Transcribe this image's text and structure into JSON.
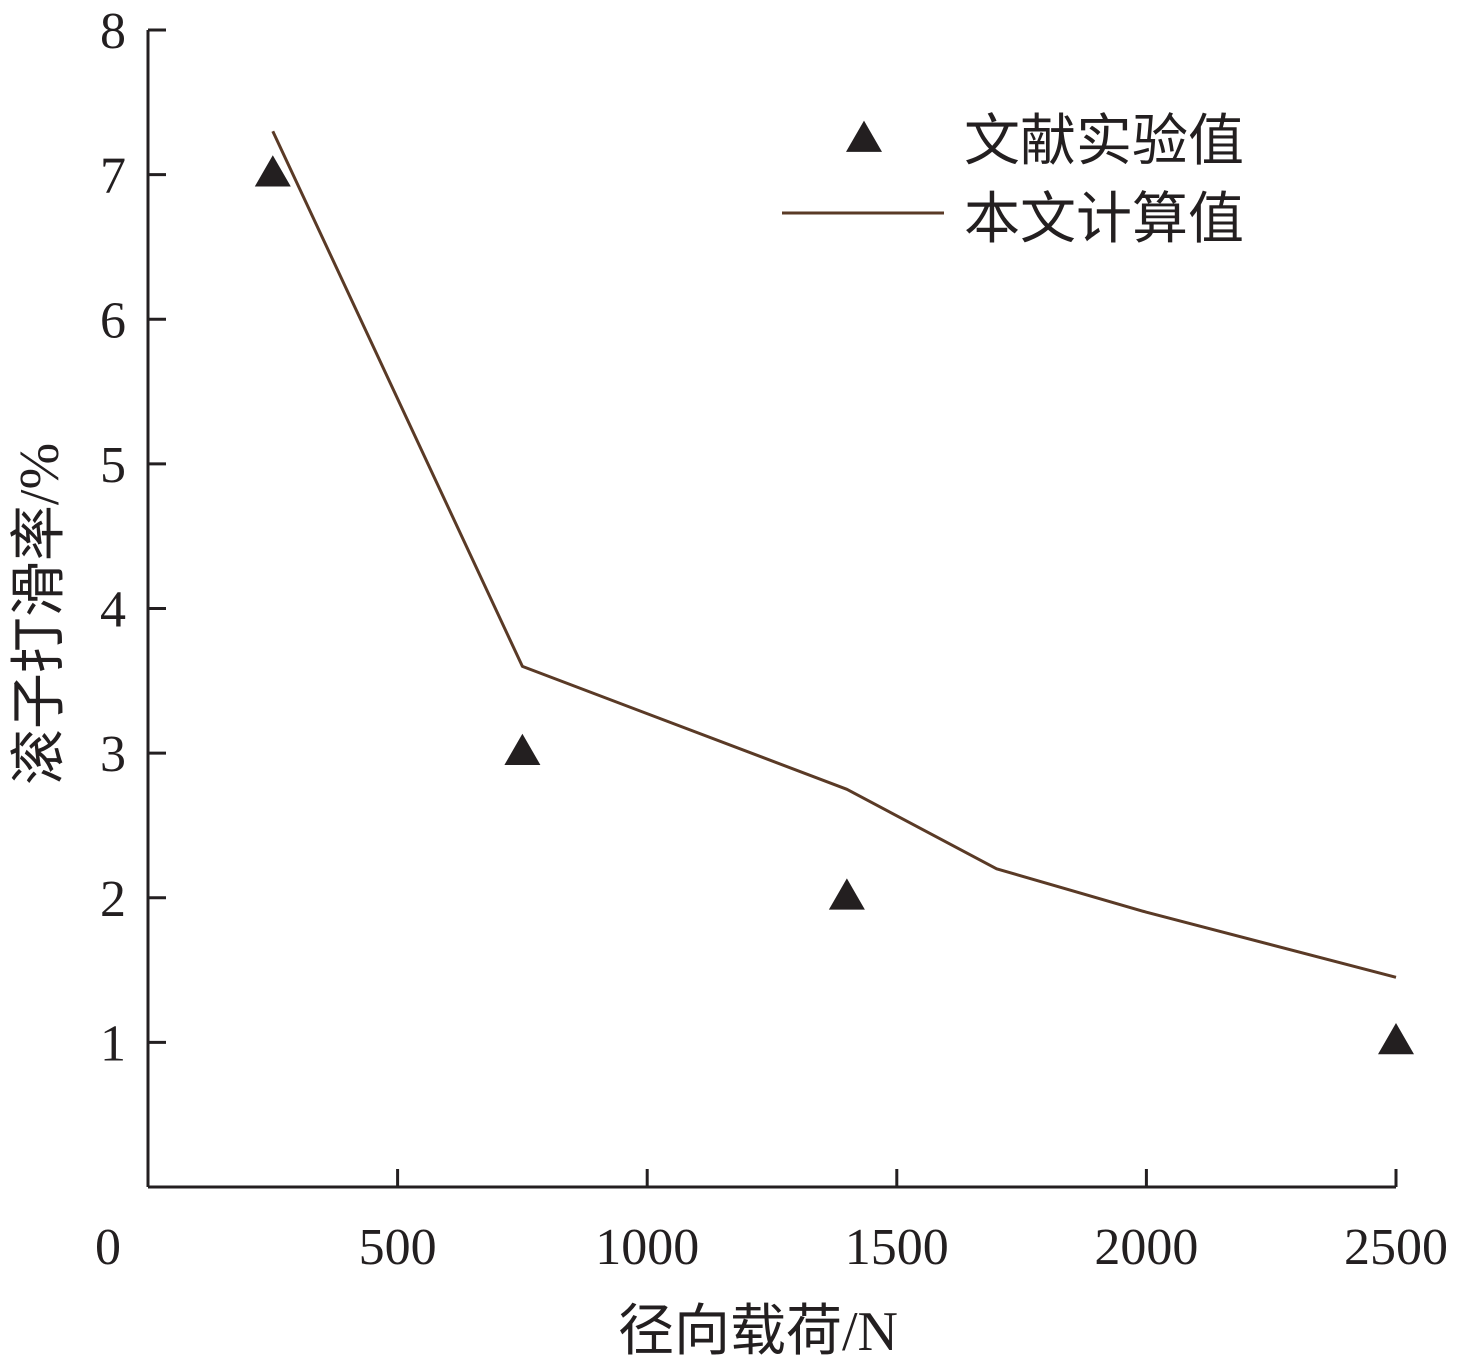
{
  "chart_data": {
    "type": "line",
    "xlabel": "径向载荷/N",
    "ylabel": "滚子打滑率/%",
    "xlim": [
      0,
      2500
    ],
    "ylim": [
      0,
      8
    ],
    "x_ticks": [
      "0",
      "500",
      "1000",
      "1500",
      "2000",
      "2500"
    ],
    "y_ticks": [
      "1",
      "2",
      "3",
      "4",
      "5",
      "6",
      "7",
      "8"
    ],
    "grid": false,
    "legend_position": "top-right",
    "series": [
      {
        "name": "文献实验值",
        "kind": "scatter",
        "marker": "triangle",
        "color": "#231f20",
        "points": [
          {
            "x": 250,
            "y": 7.0
          },
          {
            "x": 750,
            "y": 3.0
          },
          {
            "x": 1400,
            "y": 2.0
          },
          {
            "x": 2500,
            "y": 1.0
          }
        ]
      },
      {
        "name": "本文计算值",
        "kind": "line",
        "color": "#5a3a26",
        "points": [
          {
            "x": 250,
            "y": 7.3
          },
          {
            "x": 750,
            "y": 3.6
          },
          {
            "x": 1400,
            "y": 2.75
          },
          {
            "x": 1700,
            "y": 2.2
          },
          {
            "x": 2000,
            "y": 1.9
          },
          {
            "x": 2500,
            "y": 1.45
          }
        ]
      }
    ]
  }
}
